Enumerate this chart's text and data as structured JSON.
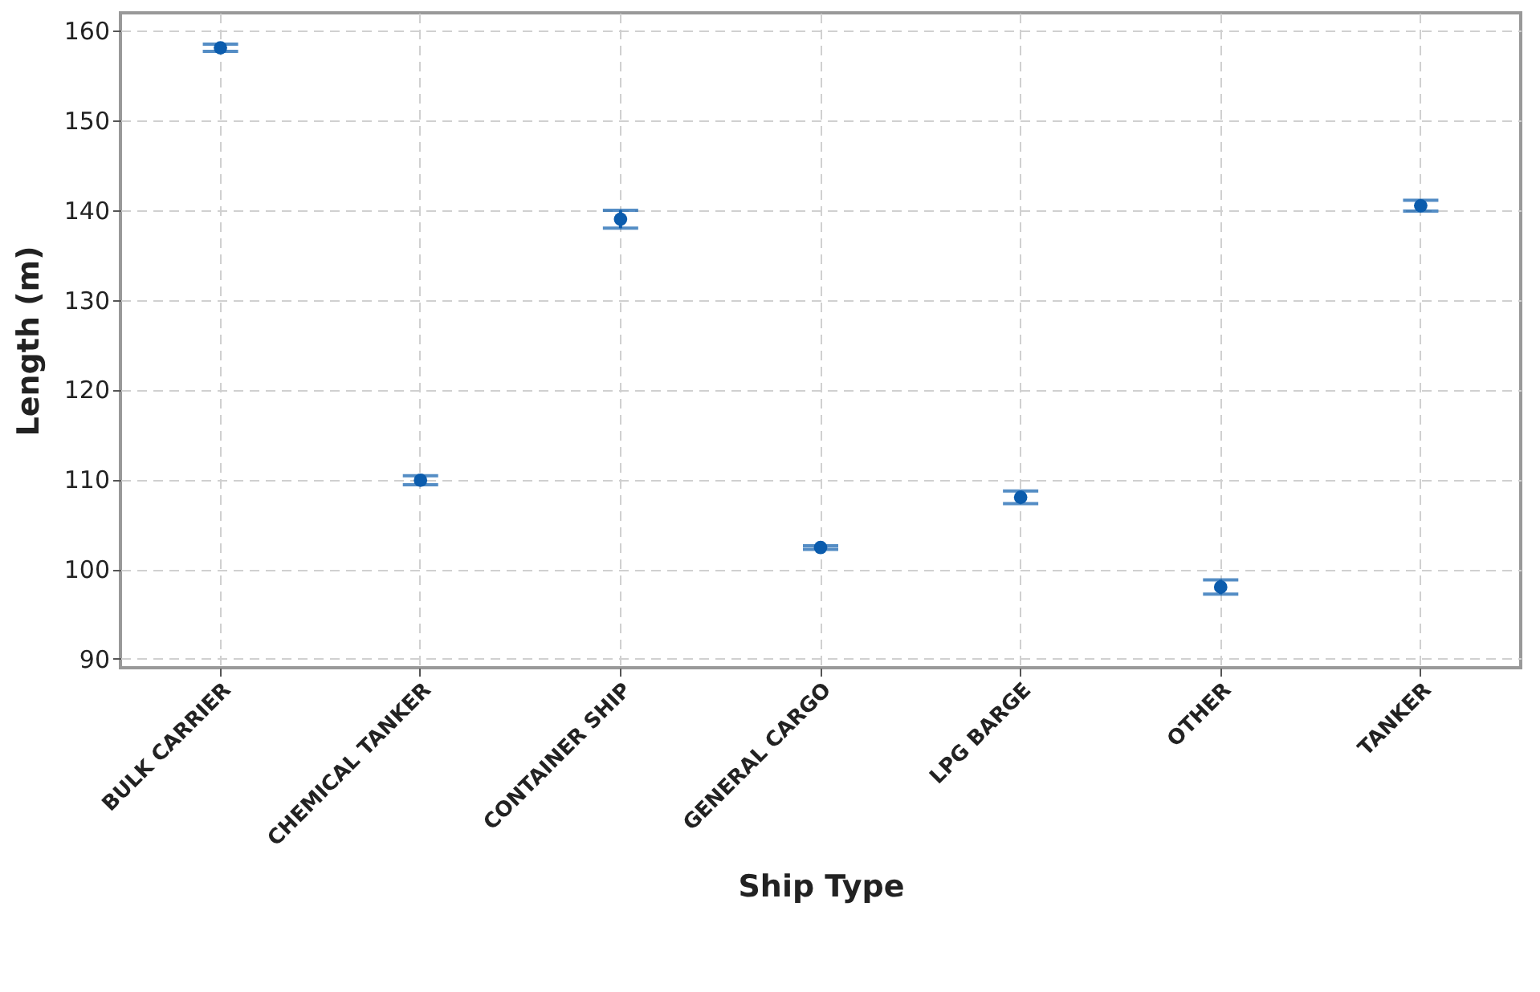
{
  "chart_data": {
    "type": "scatter",
    "xlabel": "Ship Type",
    "ylabel": "Length (m)",
    "categories": [
      "BULK CARRIER",
      "CHEMICAL TANKER",
      "CONTAINER SHIP",
      "GENERAL CARGO",
      "LPG BARGE",
      "OTHER",
      "TANKER"
    ],
    "values": [
      158.1,
      109.9,
      139.0,
      102.4,
      108.0,
      98.0,
      140.5
    ],
    "errors": [
      0.4,
      0.5,
      1.0,
      0.2,
      0.7,
      0.8,
      0.6
    ],
    "color": "#0b5cad",
    "marker": "circle",
    "ylim": [
      89,
      162
    ],
    "yticks": [
      90,
      100,
      110,
      120,
      130,
      140,
      150,
      160
    ],
    "grid": true
  }
}
